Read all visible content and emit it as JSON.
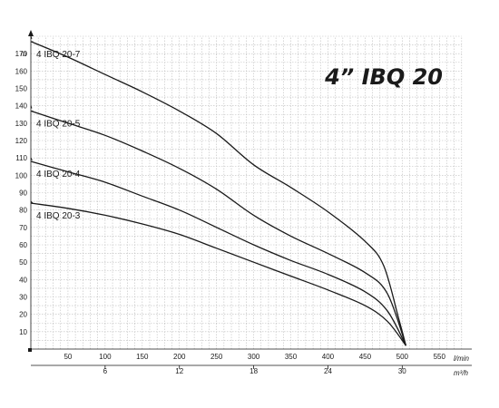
{
  "chart_data": {
    "type": "line",
    "title": "4” IBQ 20",
    "x": {
      "label": "l/min",
      "min": 0,
      "max": 590,
      "ticks": [
        50,
        100,
        150,
        200,
        250,
        300,
        350,
        400,
        450,
        500,
        550
      ]
    },
    "x2": {
      "label": "m³/h",
      "factor": 16.6667,
      "ticks": [
        6,
        12,
        18,
        24,
        30
      ]
    },
    "y": {
      "label": "m",
      "min": 0,
      "max": 180,
      "ticks": [
        10,
        20,
        30,
        40,
        50,
        60,
        70,
        80,
        90,
        100,
        110,
        120,
        130,
        140,
        150,
        160,
        170
      ]
    },
    "grid": true,
    "series": [
      {
        "name": "4 IBQ 20-7",
        "head_at_zero": 180,
        "points": [
          [
            0,
            177
          ],
          [
            50,
            168
          ],
          [
            100,
            158
          ],
          [
            150,
            148
          ],
          [
            200,
            137
          ],
          [
            250,
            124
          ],
          [
            300,
            106
          ],
          [
            350,
            93
          ],
          [
            400,
            79
          ],
          [
            450,
            62
          ],
          [
            475,
            48
          ],
          [
            495,
            18
          ],
          [
            505,
            2
          ]
        ]
      },
      {
        "name": "4 IBQ 20-5",
        "head_at_zero": 140,
        "points": [
          [
            0,
            137
          ],
          [
            50,
            130
          ],
          [
            100,
            123
          ],
          [
            150,
            114
          ],
          [
            200,
            104
          ],
          [
            250,
            92
          ],
          [
            300,
            77
          ],
          [
            350,
            65
          ],
          [
            400,
            55
          ],
          [
            450,
            44
          ],
          [
            480,
            32
          ],
          [
            505,
            2
          ]
        ]
      },
      {
        "name": "4 IBQ 20-4",
        "head_at_zero": 110,
        "points": [
          [
            0,
            108
          ],
          [
            50,
            102
          ],
          [
            100,
            96
          ],
          [
            150,
            88
          ],
          [
            200,
            80
          ],
          [
            250,
            70
          ],
          [
            300,
            60
          ],
          [
            350,
            51
          ],
          [
            400,
            43
          ],
          [
            450,
            33
          ],
          [
            480,
            22
          ],
          [
            505,
            2
          ]
        ]
      },
      {
        "name": "4 IBQ 20-3",
        "head_at_zero": 85,
        "points": [
          [
            0,
            84
          ],
          [
            50,
            81
          ],
          [
            100,
            77
          ],
          [
            150,
            72
          ],
          [
            200,
            66
          ],
          [
            250,
            58
          ],
          [
            300,
            50
          ],
          [
            350,
            42
          ],
          [
            400,
            34
          ],
          [
            450,
            25
          ],
          [
            480,
            16
          ],
          [
            505,
            2
          ]
        ]
      }
    ]
  }
}
